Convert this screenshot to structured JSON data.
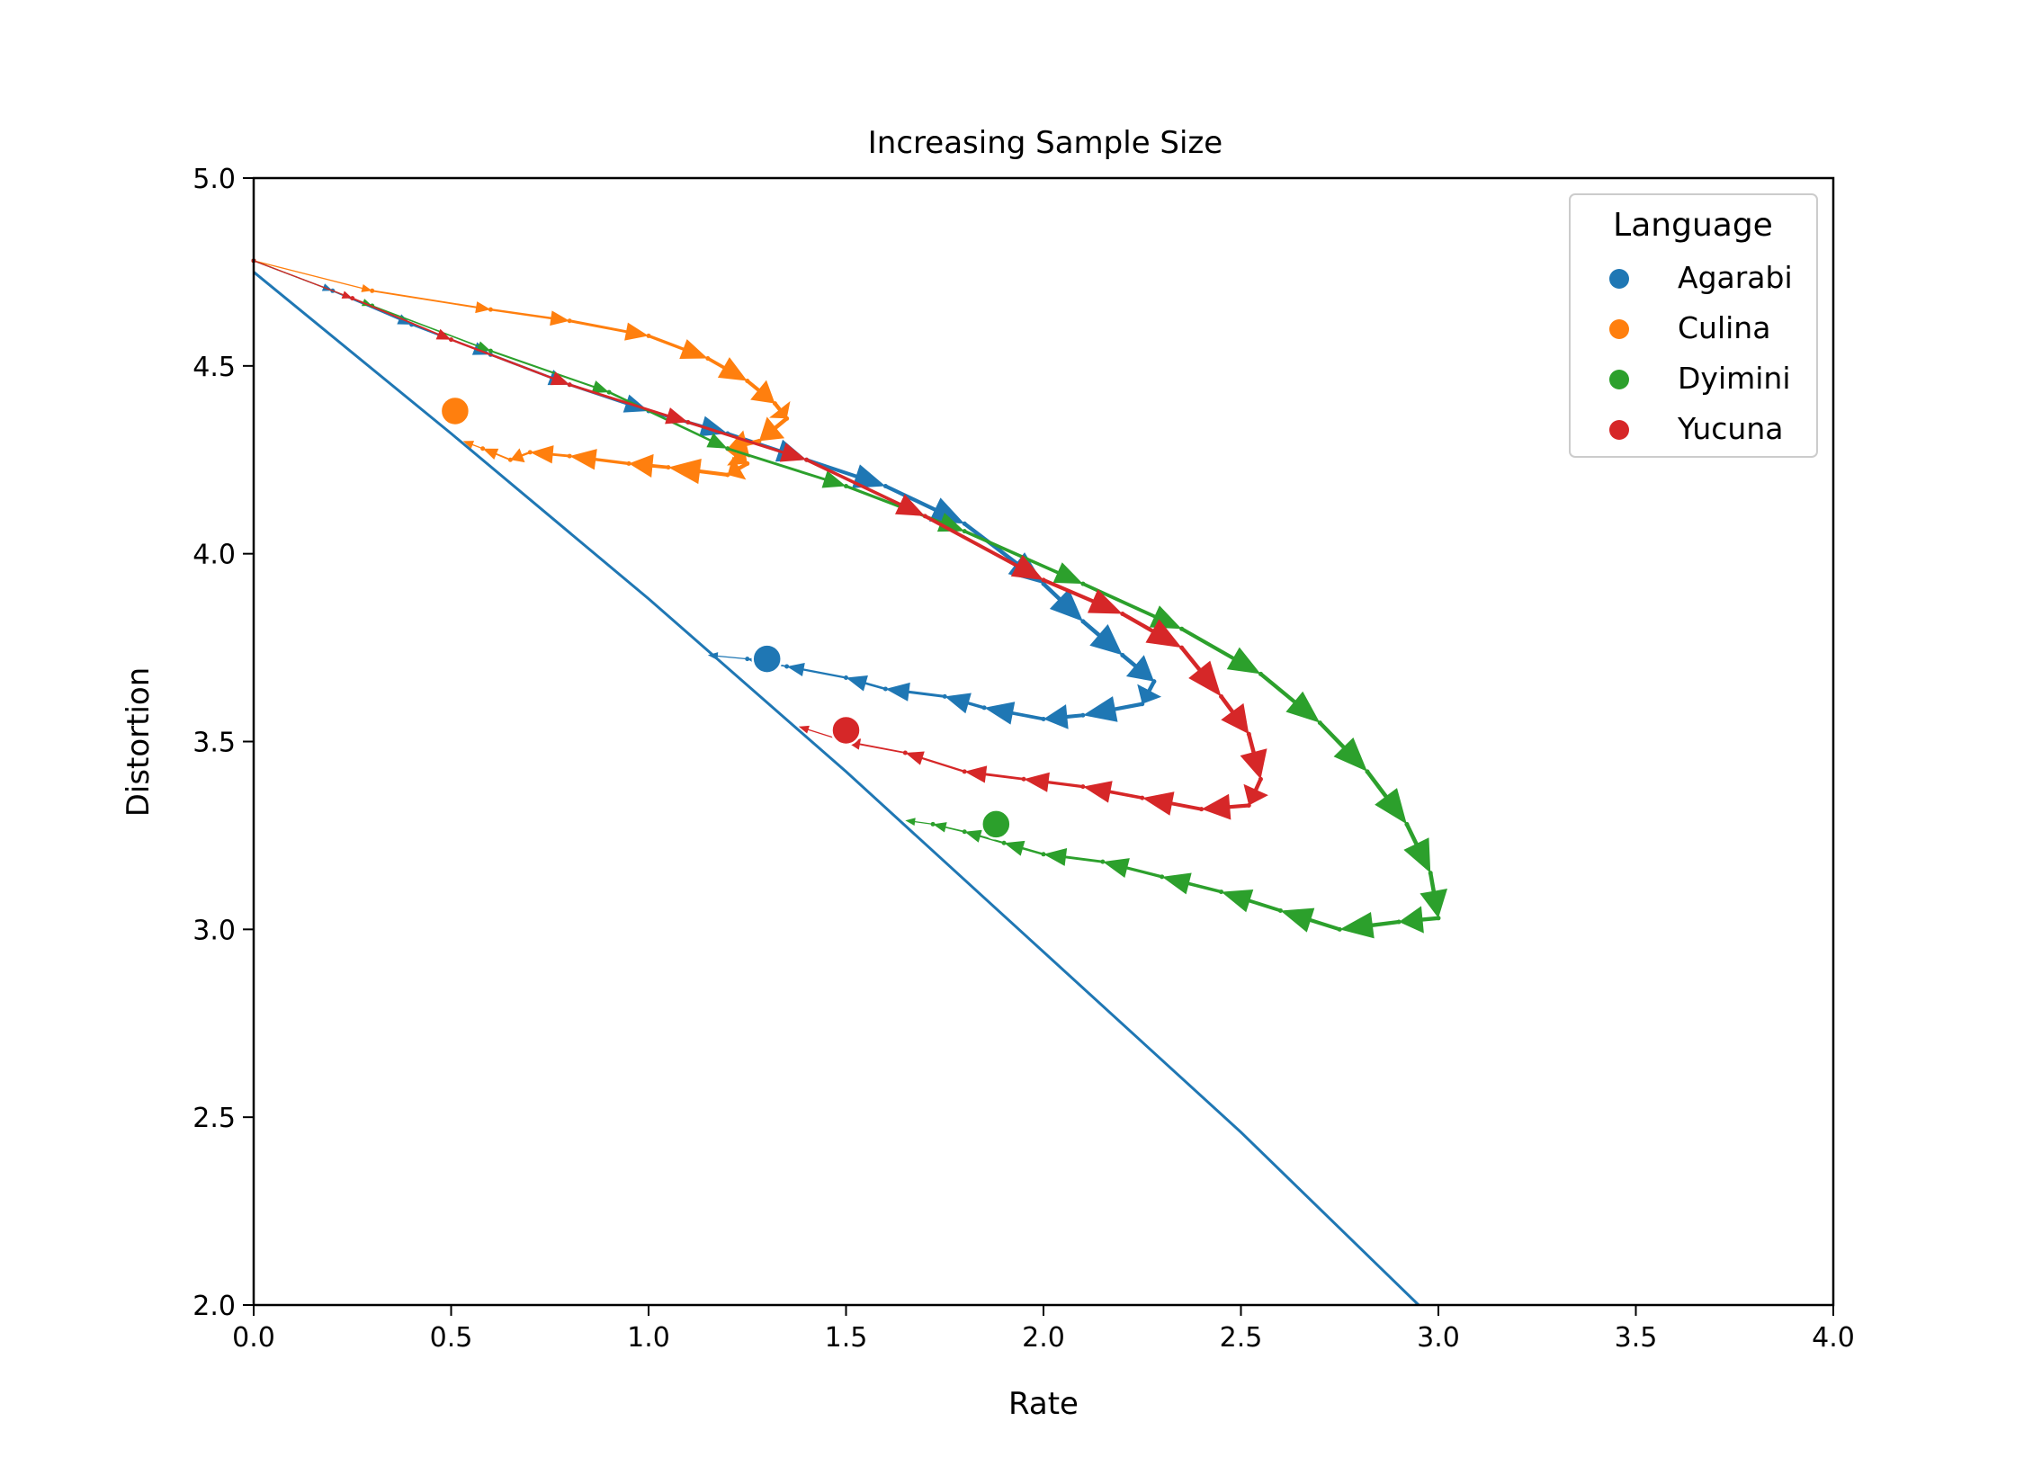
{
  "chart_data": {
    "type": "line",
    "title": "Increasing Sample Size",
    "xlabel": "Rate",
    "ylabel": "Distortion",
    "xlim": [
      0.0,
      4.0
    ],
    "ylim": [
      2.0,
      5.0
    ],
    "xticks": [
      "0.0",
      "0.5",
      "1.0",
      "1.5",
      "2.0",
      "2.5",
      "3.0",
      "3.5",
      "4.0"
    ],
    "yticks": [
      "2.0",
      "2.5",
      "3.0",
      "3.5",
      "4.0",
      "4.5",
      "5.0"
    ],
    "grid": false,
    "legend": {
      "title": "Language",
      "placement": "top-right"
    },
    "bound_line": {
      "color": "#1f77b4",
      "points": [
        [
          0.0,
          4.75
        ],
        [
          0.5,
          4.32
        ],
        [
          1.0,
          3.88
        ],
        [
          1.5,
          3.42
        ],
        [
          2.0,
          2.94
        ],
        [
          2.5,
          2.46
        ],
        [
          2.95,
          2.0
        ]
      ]
    },
    "series": [
      {
        "name": "Agarabi",
        "color": "#1f77b4",
        "final": [
          1.3,
          3.72
        ],
        "points": [
          [
            0.0,
            4.78
          ],
          [
            0.2,
            4.7
          ],
          [
            0.4,
            4.61
          ],
          [
            0.6,
            4.53
          ],
          [
            0.8,
            4.45
          ],
          [
            1.0,
            4.38
          ],
          [
            1.2,
            4.32
          ],
          [
            1.4,
            4.25
          ],
          [
            1.6,
            4.18
          ],
          [
            1.8,
            4.08
          ],
          [
            2.0,
            3.92
          ],
          [
            2.1,
            3.82
          ],
          [
            2.2,
            3.73
          ],
          [
            2.28,
            3.66
          ],
          [
            2.25,
            3.6
          ],
          [
            2.1,
            3.57
          ],
          [
            2.0,
            3.56
          ],
          [
            1.85,
            3.59
          ],
          [
            1.75,
            3.62
          ],
          [
            1.6,
            3.64
          ],
          [
            1.5,
            3.67
          ],
          [
            1.35,
            3.7
          ],
          [
            1.25,
            3.72
          ],
          [
            1.15,
            3.73
          ]
        ]
      },
      {
        "name": "Culina",
        "color": "#ff7f0e",
        "final": [
          0.51,
          4.38
        ],
        "points": [
          [
            0.0,
            4.78
          ],
          [
            0.3,
            4.7
          ],
          [
            0.6,
            4.65
          ],
          [
            0.8,
            4.62
          ],
          [
            1.0,
            4.58
          ],
          [
            1.15,
            4.52
          ],
          [
            1.25,
            4.46
          ],
          [
            1.32,
            4.4
          ],
          [
            1.35,
            4.36
          ],
          [
            1.28,
            4.3
          ],
          [
            1.2,
            4.28
          ],
          [
            1.25,
            4.24
          ],
          [
            1.2,
            4.21
          ],
          [
            1.05,
            4.23
          ],
          [
            0.95,
            4.24
          ],
          [
            0.8,
            4.26
          ],
          [
            0.7,
            4.27
          ],
          [
            0.65,
            4.25
          ],
          [
            0.58,
            4.28
          ],
          [
            0.53,
            4.3
          ]
        ]
      },
      {
        "name": "Dyimini",
        "color": "#2ca02c",
        "final": [
          1.88,
          3.28
        ],
        "points": [
          [
            0.0,
            4.78
          ],
          [
            0.3,
            4.66
          ],
          [
            0.6,
            4.54
          ],
          [
            0.9,
            4.43
          ],
          [
            1.2,
            4.28
          ],
          [
            1.5,
            4.18
          ],
          [
            1.8,
            4.06
          ],
          [
            2.1,
            3.92
          ],
          [
            2.35,
            3.8
          ],
          [
            2.55,
            3.68
          ],
          [
            2.7,
            3.55
          ],
          [
            2.82,
            3.42
          ],
          [
            2.92,
            3.28
          ],
          [
            2.98,
            3.15
          ],
          [
            3.0,
            3.03
          ],
          [
            2.9,
            3.02
          ],
          [
            2.75,
            3.0
          ],
          [
            2.6,
            3.05
          ],
          [
            2.45,
            3.1
          ],
          [
            2.3,
            3.14
          ],
          [
            2.15,
            3.18
          ],
          [
            2.0,
            3.2
          ],
          [
            1.9,
            3.23
          ],
          [
            1.8,
            3.26
          ],
          [
            1.72,
            3.28
          ],
          [
            1.65,
            3.29
          ]
        ]
      },
      {
        "name": "Yucuna",
        "color": "#d62728",
        "final": [
          1.5,
          3.53
        ],
        "points": [
          [
            0.0,
            4.78
          ],
          [
            0.25,
            4.68
          ],
          [
            0.5,
            4.57
          ],
          [
            0.8,
            4.45
          ],
          [
            1.1,
            4.35
          ],
          [
            1.4,
            4.25
          ],
          [
            1.7,
            4.1
          ],
          [
            2.0,
            3.93
          ],
          [
            2.2,
            3.84
          ],
          [
            2.35,
            3.75
          ],
          [
            2.45,
            3.62
          ],
          [
            2.52,
            3.52
          ],
          [
            2.55,
            3.4
          ],
          [
            2.52,
            3.33
          ],
          [
            2.4,
            3.32
          ],
          [
            2.25,
            3.35
          ],
          [
            2.1,
            3.38
          ],
          [
            1.95,
            3.4
          ],
          [
            1.8,
            3.42
          ],
          [
            1.65,
            3.47
          ],
          [
            1.5,
            3.5
          ],
          [
            1.38,
            3.54
          ]
        ]
      }
    ]
  }
}
